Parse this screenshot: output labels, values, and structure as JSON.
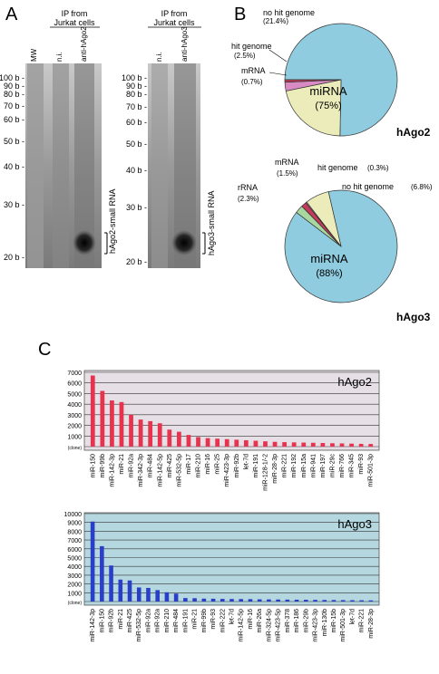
{
  "panels": {
    "a": "A",
    "b": "B",
    "c": "C"
  },
  "gelA": {
    "title": "IP from\nJurkat cells",
    "lanes": [
      "MW",
      "n.i.",
      "anti-hAgo2"
    ],
    "side_label": "hAgo2-small RNA",
    "markers": [
      "100 b -",
      "90 b -",
      "80 b -",
      "70 b -",
      "60 b -",
      "50 b -",
      "40 b -",
      "30 b -",
      "20 b -"
    ]
  },
  "gelB": {
    "title": "IP from\nJurkat cells",
    "lanes": [
      "n.i.",
      "anti-hAgo3"
    ],
    "side_label": "hAgo3-small RNA",
    "markers": [
      "100 b -",
      "90 b -",
      "80 b -",
      "70 b -",
      "60 b -",
      "50 b -",
      "40 b -",
      "30 b -",
      "20 b -"
    ]
  },
  "pies": [
    {
      "name": "hAgo2",
      "slices": [
        {
          "label": "miRNA",
          "value": 75,
          "text": "(75%)",
          "color": "#8fcce0"
        },
        {
          "label": "no hit genome",
          "value": 21.4,
          "text": "(21.4%)",
          "color": "#ececbb"
        },
        {
          "label": "hit genome",
          "value": 2.5,
          "text": "(2.5%)",
          "color": "#d88bc3"
        },
        {
          "label": "mRNA",
          "value": 0.7,
          "text": "(0.7%)",
          "color": "#c43a5a"
        }
      ]
    },
    {
      "name": "hAgo3",
      "slices": [
        {
          "label": "miRNA",
          "value": 88,
          "text": "(88%)",
          "color": "#8fcce0"
        },
        {
          "label": "rRNA",
          "value": 2.3,
          "text": "(2.3%)",
          "color": "#a8d8a0"
        },
        {
          "label": "mRNA",
          "value": 1.5,
          "text": "(1.5%)",
          "color": "#c43a5a"
        },
        {
          "label": "hit genome",
          "value": 0.3,
          "text": "(0.3%)",
          "color": "#d88bc3"
        },
        {
          "label": "no hit genome",
          "value": 6.8,
          "text": "(6.8%)",
          "color": "#ececbb"
        }
      ]
    }
  ],
  "chart_data": [
    {
      "type": "bar",
      "title": "hAgo2",
      "ylabel": "(clone)",
      "ylim": [
        0,
        7000
      ],
      "yticks": [
        0,
        1000,
        2000,
        3000,
        4000,
        5000,
        6000,
        7000
      ],
      "color": "#e8334f",
      "bg": "#e6dfe6",
      "categories": [
        "miR-150",
        "miR-99b",
        "miR-142-3p",
        "miR-21",
        "miR-92a",
        "miR-342-3p",
        "miR-484",
        "miR-142-5p",
        "miR-425",
        "miR-532-5p",
        "miR-17",
        "miR-210",
        "miR-16",
        "miR-25",
        "miR-423-3p",
        "miR-92b",
        "let-7d",
        "miR-191",
        "miR-128-1/-2",
        "miR-28-3p",
        "miR-221",
        "miR-192",
        "miR-15a",
        "miR-941",
        "miR-197",
        "miR-29c",
        "miR-766",
        "miR-345",
        "miR-93",
        "miR-501-3p"
      ],
      "values": [
        6700,
        5250,
        4350,
        4200,
        3000,
        2550,
        2400,
        2200,
        1600,
        1400,
        1100,
        900,
        800,
        750,
        700,
        650,
        600,
        550,
        500,
        450,
        420,
        400,
        380,
        360,
        340,
        320,
        300,
        280,
        260,
        250
      ]
    },
    {
      "type": "bar",
      "title": "hAgo3",
      "ylabel": "(clone)",
      "ylim": [
        0,
        10000
      ],
      "yticks": [
        0,
        1000,
        2000,
        3000,
        4000,
        5000,
        6000,
        7000,
        8000,
        9000,
        10000
      ],
      "color": "#2a3fc8",
      "bg": "#b5d8e0",
      "categories": [
        "miR-142-3p",
        "miR-150",
        "miR-92b",
        "miR-21",
        "miR-425",
        "miR-532-5p",
        "miR-92a",
        "miR-92a",
        "miR-210",
        "miR-484",
        "miR-191",
        "miR-21",
        "miR-99b",
        "miR-93",
        "miR-222",
        "let-7d",
        "miR-142-5p",
        "miR-16",
        "miR-26a",
        "miR-324-5p",
        "miR-423-5p",
        "miR-378",
        "miR-186",
        "miR-29b",
        "miR-423-3p",
        "miR-130b",
        "miR-15b",
        "miR-501-3p",
        "let-7d",
        "miR-221",
        "miR-28-3p"
      ],
      "values": [
        9100,
        6300,
        4100,
        2500,
        2400,
        1600,
        1550,
        1300,
        1050,
        900,
        400,
        380,
        330,
        320,
        300,
        290,
        280,
        270,
        250,
        240,
        230,
        220,
        210,
        200,
        190,
        180,
        170,
        160,
        150,
        140,
        130
      ]
    }
  ]
}
